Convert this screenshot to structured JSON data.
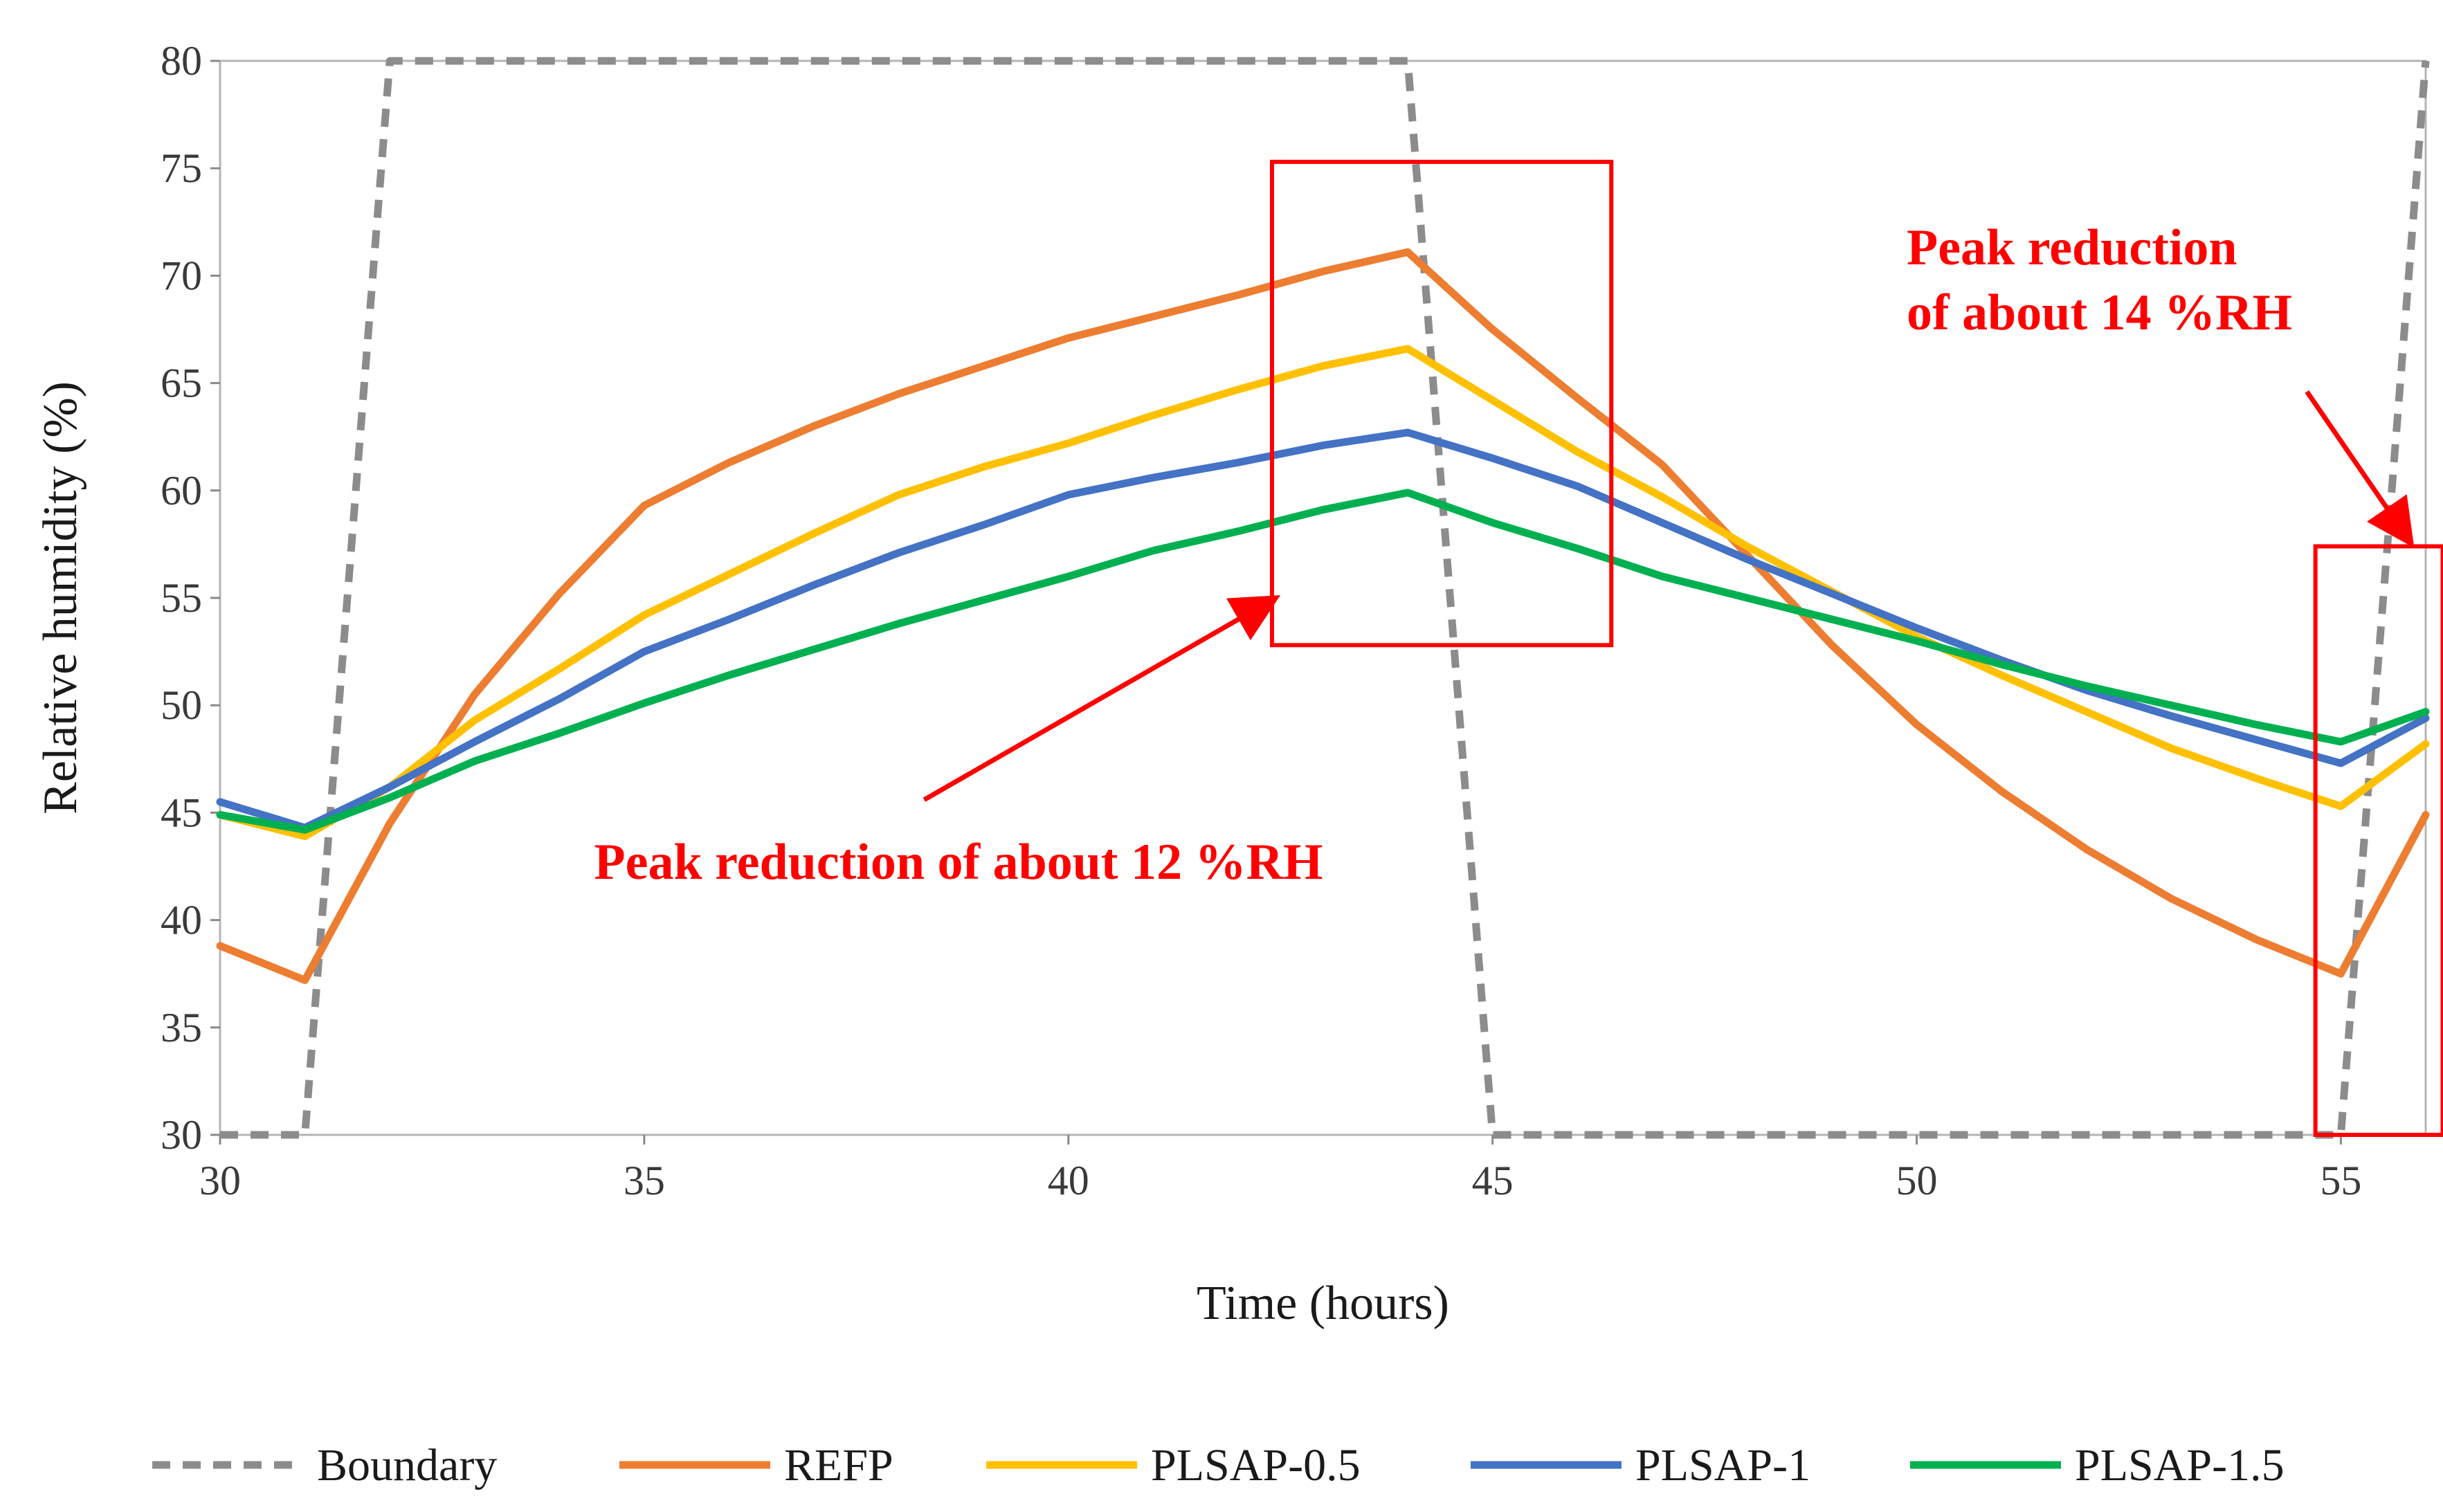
{
  "chart_data": {
    "type": "line",
    "xlabel": "Time (hours)",
    "ylabel": "Relative humidity (%)",
    "xlim": [
      30,
      56
    ],
    "ylim": [
      30,
      80
    ],
    "x_ticks": [
      30,
      35,
      40,
      45,
      50,
      55
    ],
    "y_ticks": [
      30,
      35,
      40,
      45,
      50,
      55,
      60,
      65,
      70,
      75,
      80
    ],
    "grid": false,
    "legend_position": "bottom",
    "series": [
      {
        "name": "Boundary",
        "color": "#8c8c8c",
        "dashed": true,
        "points": [
          [
            30,
            30
          ],
          [
            31,
            30
          ],
          [
            32,
            80
          ],
          [
            44,
            80
          ],
          [
            45,
            30
          ],
          [
            55,
            30
          ],
          [
            56,
            80
          ]
        ]
      },
      {
        "name": "REFP",
        "color": "#ed7d31",
        "dashed": false,
        "points": [
          [
            30,
            38.8
          ],
          [
            31,
            37.2
          ],
          [
            32,
            44.5
          ],
          [
            33,
            50.5
          ],
          [
            34,
            55.2
          ],
          [
            35,
            59.3
          ],
          [
            36,
            61.3
          ],
          [
            37,
            63
          ],
          [
            38,
            64.5
          ],
          [
            39,
            65.8
          ],
          [
            40,
            67.1
          ],
          [
            41,
            68.1
          ],
          [
            42,
            69.1
          ],
          [
            43,
            70.2
          ],
          [
            44,
            71.1
          ],
          [
            45,
            67.5
          ],
          [
            46,
            64.3
          ],
          [
            47,
            61.2
          ],
          [
            48,
            57
          ],
          [
            49,
            52.8
          ],
          [
            50,
            49.1
          ],
          [
            51,
            46
          ],
          [
            52,
            43.3
          ],
          [
            53,
            41
          ],
          [
            54,
            39.1
          ],
          [
            55,
            37.5
          ],
          [
            56,
            44.9
          ]
        ]
      },
      {
        "name": "PLSAP-0.5",
        "color": "#ffc000",
        "dashed": false,
        "points": [
          [
            30,
            44.9
          ],
          [
            31,
            43.9
          ],
          [
            32,
            46.2
          ],
          [
            33,
            49.3
          ],
          [
            34,
            51.7
          ],
          [
            35,
            54.2
          ],
          [
            36,
            56.1
          ],
          [
            37,
            58
          ],
          [
            38,
            59.8
          ],
          [
            39,
            61.1
          ],
          [
            40,
            62.2
          ],
          [
            41,
            63.5
          ],
          [
            42,
            64.7
          ],
          [
            43,
            65.8
          ],
          [
            44,
            66.6
          ],
          [
            45,
            64.2
          ],
          [
            46,
            61.8
          ],
          [
            47,
            59.7
          ],
          [
            48,
            57.4
          ],
          [
            49,
            55.3
          ],
          [
            50,
            53.2
          ],
          [
            51,
            51.4
          ],
          [
            52,
            49.7
          ],
          [
            53,
            48
          ],
          [
            54,
            46.6
          ],
          [
            55,
            45.3
          ],
          [
            56,
            48.2
          ]
        ]
      },
      {
        "name": "PLSAP-1",
        "color": "#4472c4",
        "dashed": false,
        "points": [
          [
            30,
            45.5
          ],
          [
            31,
            44.3
          ],
          [
            32,
            46.2
          ],
          [
            33,
            48.3
          ],
          [
            34,
            50.3
          ],
          [
            35,
            52.5
          ],
          [
            36,
            54
          ],
          [
            37,
            55.6
          ],
          [
            38,
            57.1
          ],
          [
            39,
            58.4
          ],
          [
            40,
            59.8
          ],
          [
            41,
            60.6
          ],
          [
            42,
            61.3
          ],
          [
            43,
            62.1
          ],
          [
            44,
            62.7
          ],
          [
            45,
            61.5
          ],
          [
            46,
            60.2
          ],
          [
            47,
            58.5
          ],
          [
            48,
            56.8
          ],
          [
            49,
            55.2
          ],
          [
            50,
            53.6
          ],
          [
            51,
            52.1
          ],
          [
            52,
            50.7
          ],
          [
            53,
            49.5
          ],
          [
            54,
            48.4
          ],
          [
            55,
            47.3
          ],
          [
            56,
            49.4
          ]
        ]
      },
      {
        "name": "PLSAP-1.5",
        "color": "#00b050",
        "dashed": false,
        "points": [
          [
            30,
            44.9
          ],
          [
            31,
            44.2
          ],
          [
            32,
            45.7
          ],
          [
            33,
            47.4
          ],
          [
            34,
            48.7
          ],
          [
            35,
            50.1
          ],
          [
            36,
            51.4
          ],
          [
            37,
            52.6
          ],
          [
            38,
            53.8
          ],
          [
            39,
            54.9
          ],
          [
            40,
            56
          ],
          [
            41,
            57.2
          ],
          [
            42,
            58.1
          ],
          [
            43,
            59.1
          ],
          [
            44,
            59.9
          ],
          [
            45,
            58.5
          ],
          [
            46,
            57.3
          ],
          [
            47,
            56
          ],
          [
            48,
            55
          ],
          [
            49,
            54
          ],
          [
            50,
            53
          ],
          [
            51,
            51.9
          ],
          [
            52,
            50.9
          ],
          [
            53,
            50
          ],
          [
            54,
            49.1
          ],
          [
            55,
            48.3
          ],
          [
            56,
            49.7
          ]
        ]
      }
    ],
    "annotations": [
      {
        "lines": [
          "Peak reduction of about 12 %RH"
        ],
        "color": "#ff0000",
        "box": {
          "x": [
            42.4,
            46.4
          ],
          "y": [
            52.8,
            75.3
          ]
        },
        "arrow_from": [
          38.3,
          45.6
        ],
        "arrow_to": [
          42.4,
          54.9
        ]
      },
      {
        "lines": [
          "Peak reduction",
          "of about 14 %RH"
        ],
        "color": "#ff0000",
        "box": {
          "x": [
            54.7,
            56.2
          ],
          "y": [
            30,
            57.4
          ]
        },
        "arrow_from": [
          54.6,
          64.6
        ],
        "arrow_to": [
          55.8,
          57.7
        ]
      }
    ]
  }
}
